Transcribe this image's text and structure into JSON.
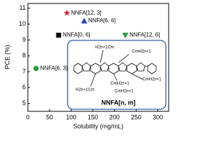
{
  "chart_data": {
    "type": "scatter",
    "xlabel": "Solubility (mg/mL)",
    "ylabel": "PCE (%)",
    "xlim": [
      0,
      325
    ],
    "xticks": [
      0,
      50,
      100,
      150,
      200,
      250,
      300
    ],
    "ylim": [
      4.5,
      11.3
    ],
    "yticks": [
      5,
      6,
      7,
      8,
      9,
      10,
      11
    ],
    "series": [
      {
        "name": "NNFA[12, 3]",
        "color": "#e8202a",
        "marker": "star",
        "x": [
          90
        ],
        "values": [
          10.7
        ]
      },
      {
        "name": "NNFA[6, 6]",
        "color": "#2447b8",
        "marker": "triangle-up",
        "x": [
          130
        ],
        "values": [
          10.2
        ]
      },
      {
        "name": "NNFA[0, 6]",
        "color": "#000000",
        "marker": "square",
        "x": [
          71
        ],
        "values": [
          9.3
        ]
      },
      {
        "name": "NNFA[12, 6]",
        "color": "#2e9e3e",
        "marker": "triangle-down",
        "x": [
          225
        ],
        "values": [
          9.3
        ]
      },
      {
        "name": "NNFA[6, 3]",
        "color": "#2e9e3e",
        "marker": "circle",
        "x": [
          19
        ],
        "values": [
          7.2
        ]
      }
    ]
  },
  "inset": {
    "labels": [
      "H2n+1Cm",
      "CmH2n+1",
      "CmH2n+1",
      "CmH2n+1",
      "H2n+1Cm",
      "CmH2n+1"
    ],
    "title": "NNFA[n, m]"
  }
}
